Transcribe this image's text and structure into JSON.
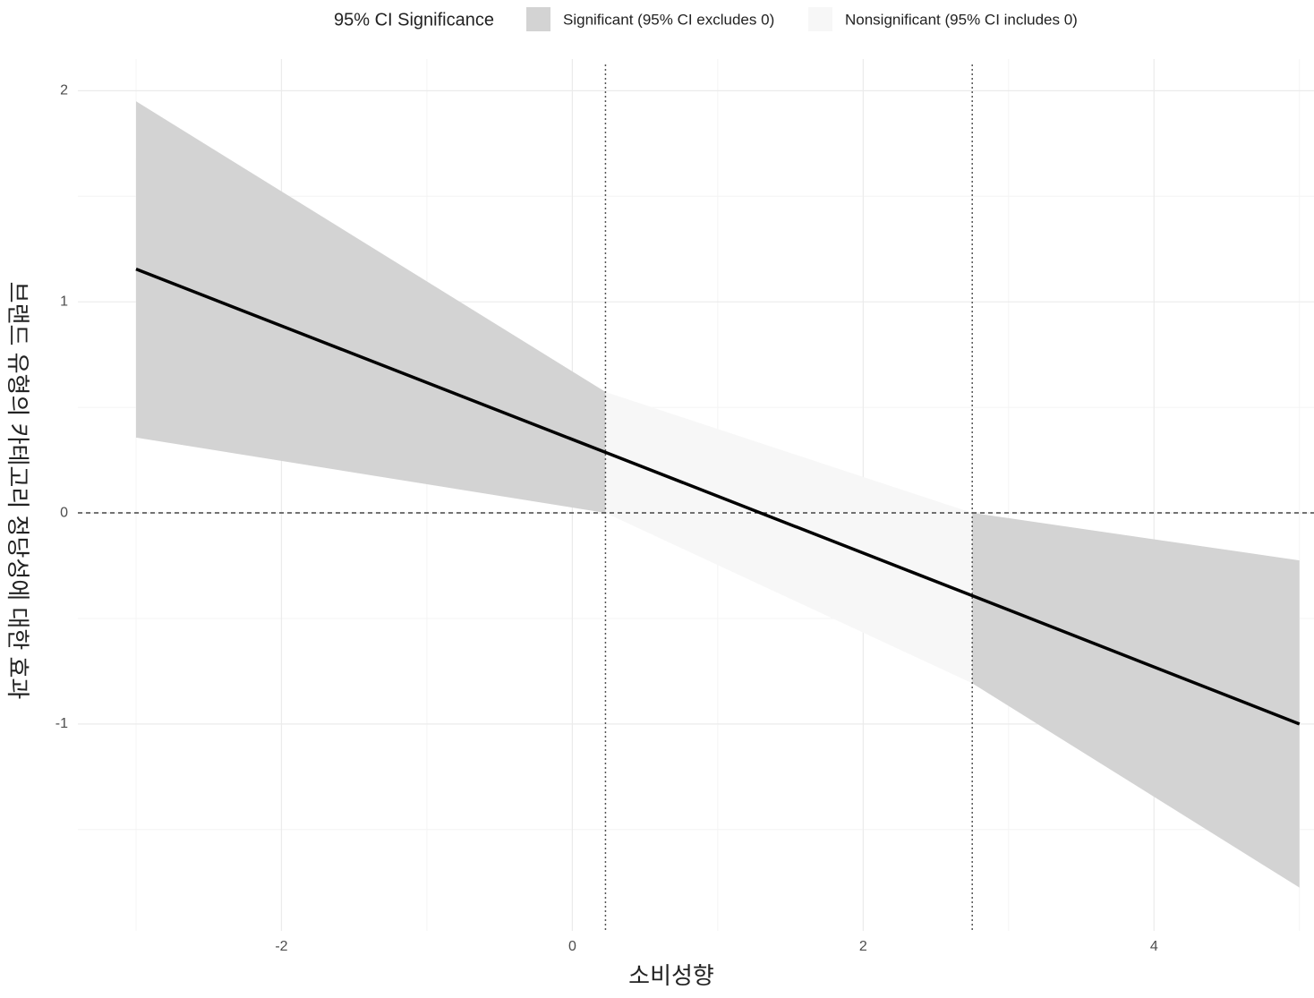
{
  "chart_data": {
    "type": "band_line",
    "legend_title": "95% CI Significance",
    "legend": [
      {
        "name": "Significant (95% CI excludes 0)",
        "color": "#d3d3d3"
      },
      {
        "name": "Nonsignificant (95% CI includes 0)",
        "color": "#f7f7f7"
      }
    ],
    "x_label": "소비성향",
    "y_label": "브랜드 유형의 카테고리 정당성에 대한 효과",
    "x": [
      -3,
      0.228,
      2.75,
      5
    ],
    "estimate": [
      1.155,
      0.287,
      -0.392,
      -1.0
    ],
    "upper": [
      1.95,
      0.573,
      0,
      -0.225
    ],
    "lower": [
      0.357,
      0,
      -0.807,
      -1.775
    ],
    "segment_legend_index": [
      0,
      1,
      0
    ],
    "jn_points": [
      0.228,
      2.75
    ],
    "reference_line": 0,
    "xlim": [
      -3.4,
      5.1
    ],
    "ylim": [
      -1.98,
      2.15
    ],
    "xticks": [
      -2,
      0,
      2,
      4
    ],
    "yticks": [
      -1,
      0,
      1,
      2
    ],
    "xminor": [
      -3,
      -1,
      1,
      3,
      5
    ],
    "yminor": [
      -1.5,
      -0.5,
      0.5,
      1.5
    ],
    "line_color": "#000000",
    "grid": true
  }
}
